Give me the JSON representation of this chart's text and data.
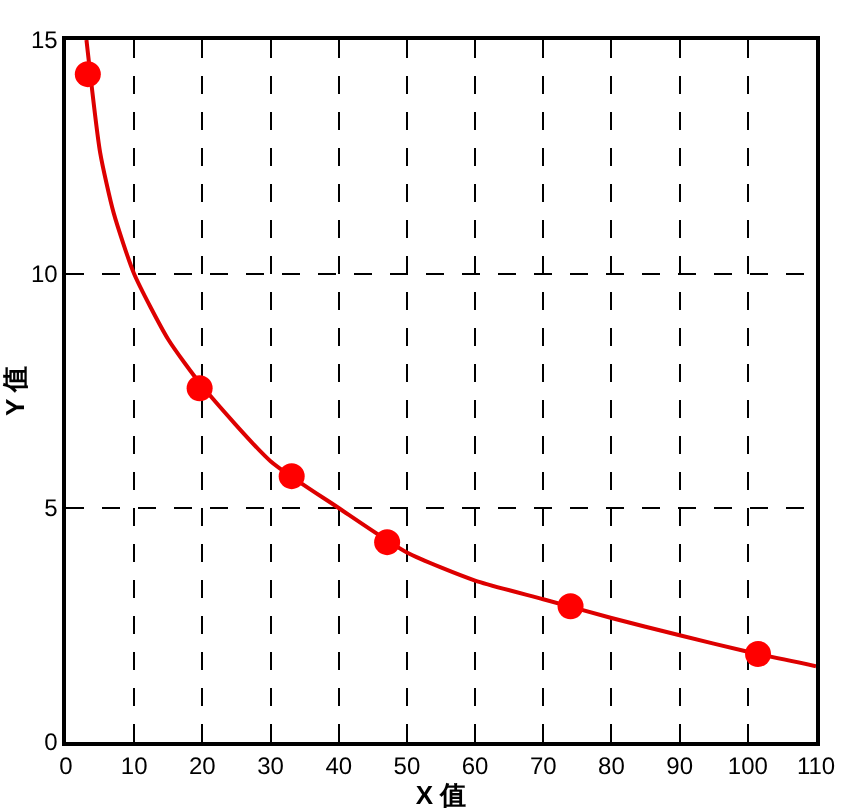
{
  "chart_data": {
    "type": "scatter",
    "xlabel": "X 值",
    "ylabel": "Y 值",
    "xlim": [
      0,
      110
    ],
    "ylim": [
      0,
      15
    ],
    "xticks": [
      0,
      10,
      20,
      30,
      40,
      50,
      60,
      70,
      80,
      90,
      100,
      110
    ],
    "yticks": [
      0,
      5,
      10,
      15
    ],
    "grid": true,
    "series": [
      {
        "color": "#ff0000",
        "marker": "circle",
        "x": [
          3.2,
          19.6,
          33.1,
          47.1,
          74,
          101.5
        ],
        "values": [
          14.27,
          7.56,
          5.68,
          4.27,
          2.9,
          1.88
        ]
      },
      {
        "type": "line",
        "color": "#dd0000",
        "marker": "none",
        "line_style": "solid",
        "x": [
          3,
          5,
          7,
          10,
          15,
          20,
          30,
          40,
          50,
          60,
          70,
          80,
          90,
          100,
          110
        ],
        "values": [
          15,
          12.6,
          11.3,
          10,
          8.6,
          7.6,
          6,
          5,
          4.05,
          3.45,
          3.05,
          2.65,
          2.28,
          1.93,
          1.62
        ]
      }
    ]
  }
}
